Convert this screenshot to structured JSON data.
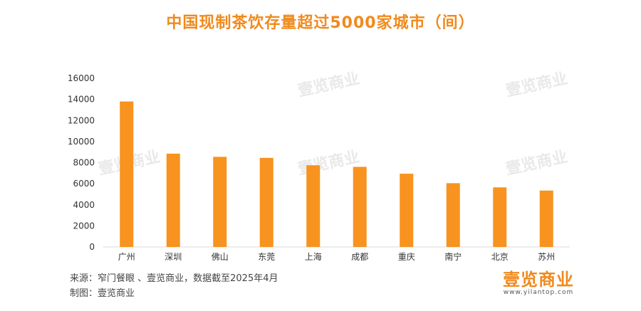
{
  "chart_data": {
    "type": "bar",
    "title": "中国现制茶饮存量超过5000家城市（间）",
    "categories": [
      "广州",
      "深圳",
      "佛山",
      "东莞",
      "上海",
      "成都",
      "重庆",
      "南宁",
      "北京",
      "苏州"
    ],
    "values": [
      13800,
      8850,
      8550,
      8450,
      7750,
      7600,
      6950,
      6050,
      5650,
      5350
    ],
    "ylim": [
      0,
      16000
    ],
    "yticks": [
      0,
      2000,
      4000,
      6000,
      8000,
      10000,
      12000,
      14000,
      16000
    ],
    "xlabel": "",
    "ylabel": "",
    "grid": false,
    "bar_color": "#f7931e"
  },
  "watermark": "壹览商业",
  "footer": {
    "source": "来源：窄门餐眼 、壹览商业，数据截至2025年4月",
    "maker": "制图：壹览商业"
  },
  "logo": {
    "text": "壹览商业",
    "url": "www.yilantop.com"
  }
}
